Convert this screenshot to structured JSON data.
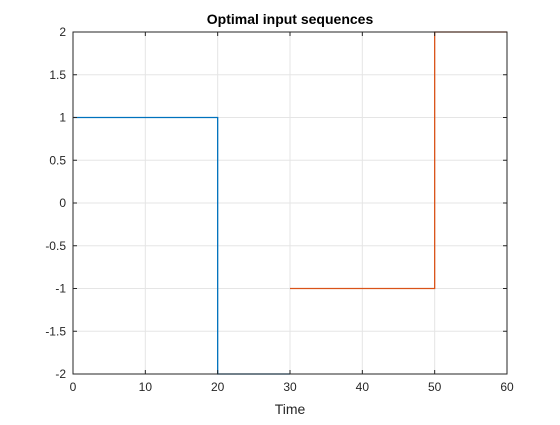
{
  "chart_data": {
    "type": "line",
    "title": "Optimal input sequences",
    "xlabel": "Time",
    "ylabel": "",
    "xlim": [
      0,
      60
    ],
    "ylim": [
      -2,
      2
    ],
    "xticks": [
      0,
      10,
      20,
      30,
      40,
      50,
      60
    ],
    "yticks": [
      -2,
      -1.5,
      -1,
      -0.5,
      0,
      0.5,
      1,
      1.5,
      2
    ],
    "xtick_labels": [
      "0",
      "10",
      "20",
      "30",
      "40",
      "50",
      "60"
    ],
    "ytick_labels": [
      "-2",
      "-1.5",
      "-1",
      "-0.5",
      "0",
      "0.5",
      "1",
      "1.5",
      "2"
    ],
    "grid": true,
    "legend": "none",
    "series": [
      {
        "color": "#0072BD",
        "x": [
          0,
          20,
          20,
          30
        ],
        "y": [
          1,
          1,
          -2,
          -2
        ]
      },
      {
        "color": "#D95319",
        "x": [
          30,
          50,
          50,
          60
        ],
        "y": [
          -1,
          -1,
          2,
          2
        ]
      }
    ]
  }
}
